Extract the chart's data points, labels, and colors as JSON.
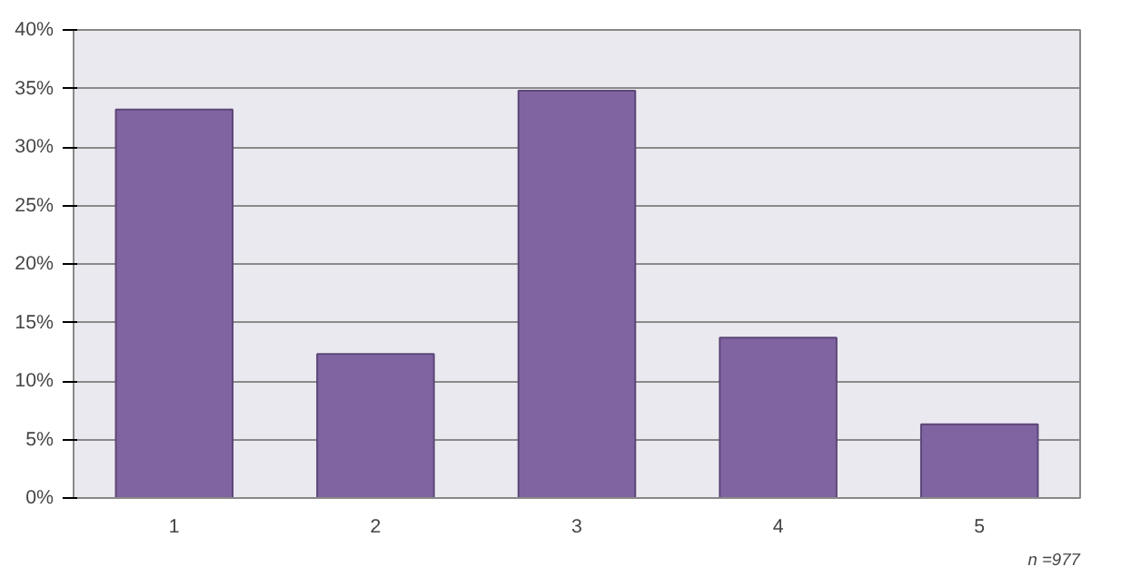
{
  "chart_data": {
    "type": "bar",
    "categories": [
      "1",
      "2",
      "3",
      "4",
      "5"
    ],
    "values": [
      33.2,
      12.3,
      34.8,
      13.7,
      6.3
    ],
    "color": "#8064a2",
    "ylim": [
      0,
      40
    ],
    "yticks": [
      {
        "value": 0,
        "label": "0%"
      },
      {
        "value": 5,
        "label": "5%"
      },
      {
        "value": 10,
        "label": "10%"
      },
      {
        "value": 15,
        "label": "15%"
      },
      {
        "value": 20,
        "label": "20%"
      },
      {
        "value": 25,
        "label": "25%"
      },
      {
        "value": 30,
        "label": "30%"
      },
      {
        "value": 35,
        "label": "35%"
      },
      {
        "value": 40,
        "label": "40%"
      }
    ],
    "grid": "y",
    "annotations": [
      "n =977"
    ]
  }
}
